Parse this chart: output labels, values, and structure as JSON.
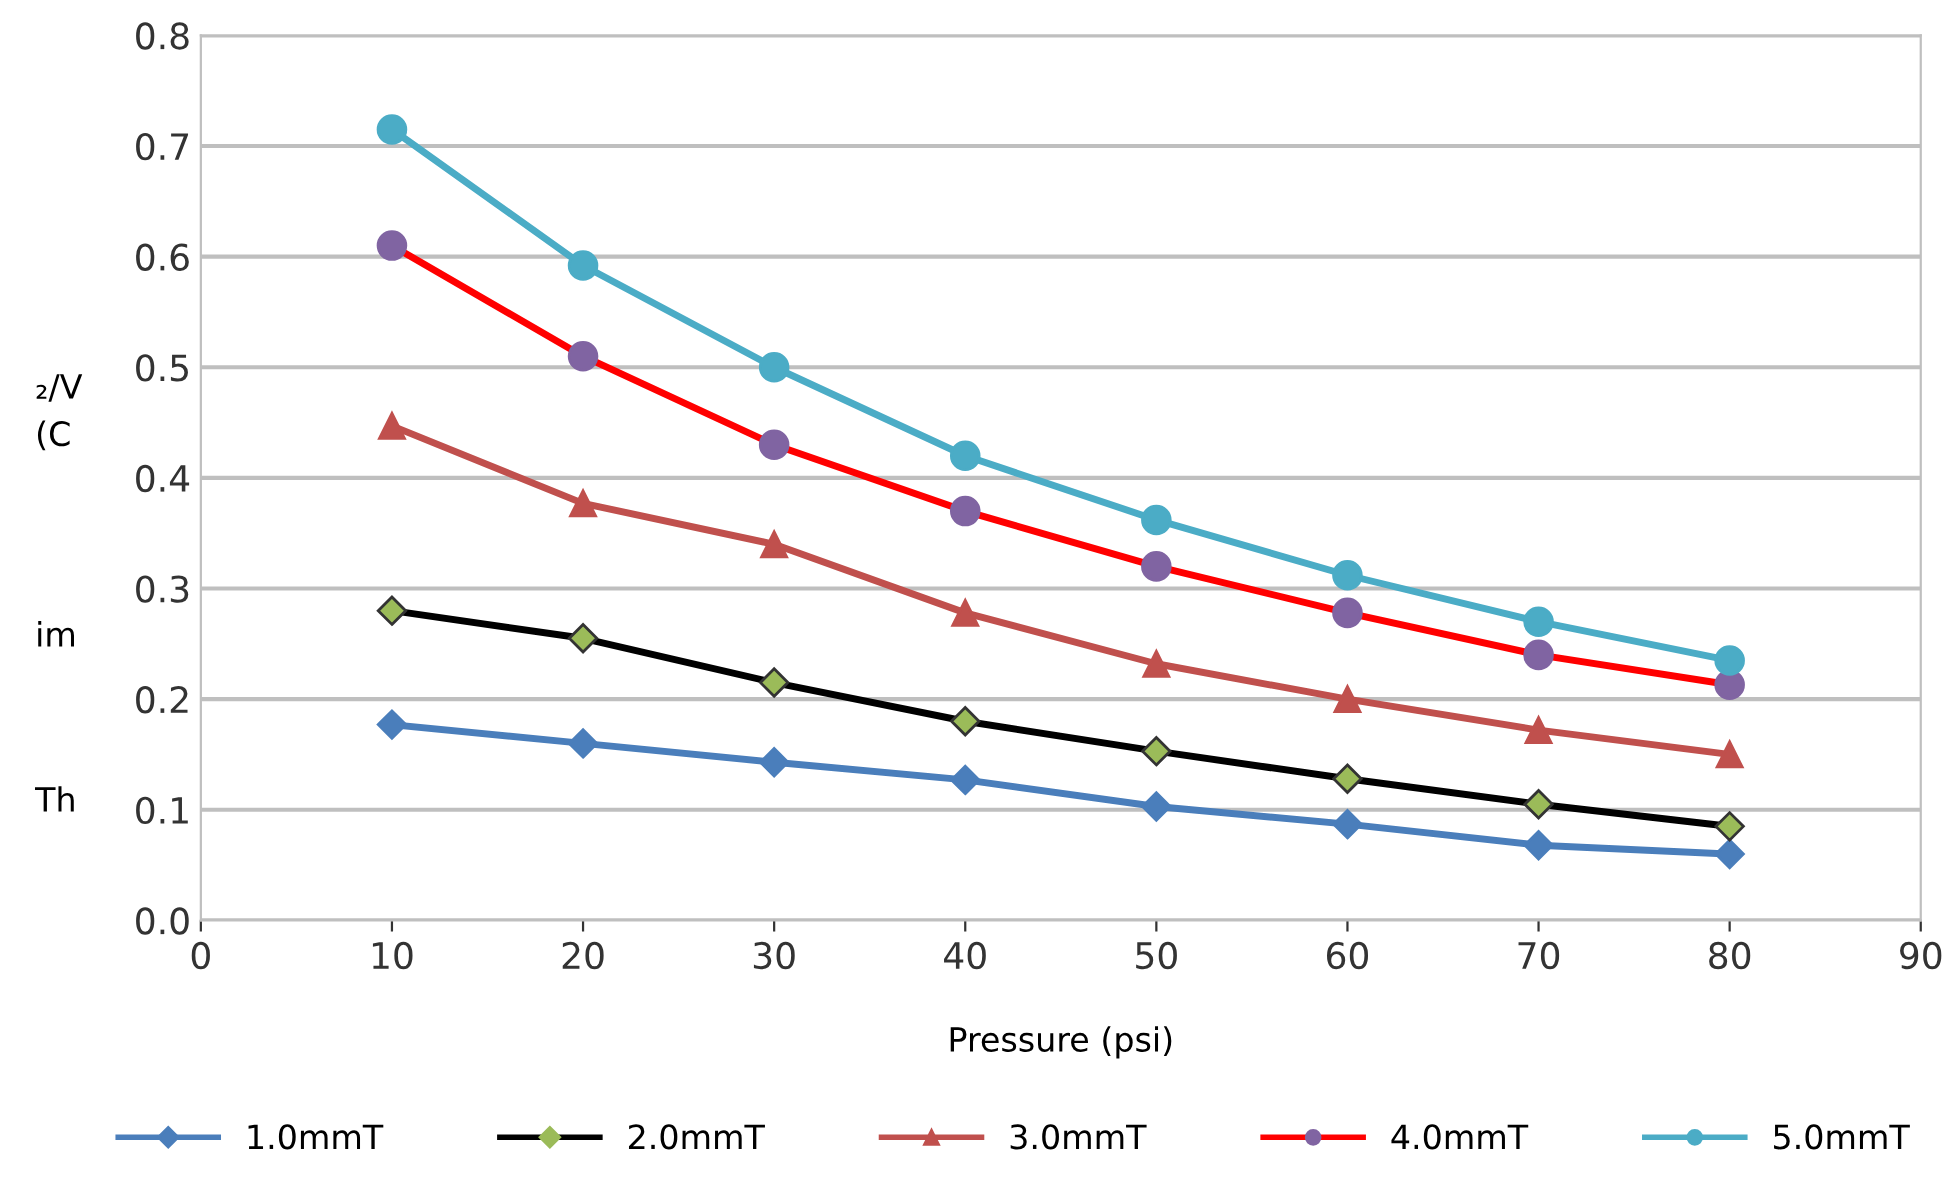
{
  "chart_data": {
    "type": "line",
    "xlabel": "Pressure (psi)",
    "annotations": [
      "₂/V",
      "(C",
      "im",
      "Th"
    ],
    "x": [
      10,
      20,
      30,
      40,
      50,
      60,
      70,
      80
    ],
    "xlim": [
      0,
      90
    ],
    "xticks": [
      0,
      10,
      20,
      30,
      40,
      50,
      60,
      70,
      80,
      90
    ],
    "ylim": [
      0,
      0.8
    ],
    "yticks": [
      {
        "value": 0,
        "label": "0.0"
      },
      0.1,
      0.2,
      0.3,
      0.4,
      0.5,
      0.6,
      0.7,
      0.8
    ],
    "grid": "y",
    "legend": "bottom",
    "series": [
      {
        "name": "1.0mmT",
        "color": "#4a7ebb",
        "colors": [
          "#4a7ebb",
          "#4a7ebb",
          "#4a7ebb",
          "#4a7ebb",
          "#4a7ebb",
          "#4a7ebb",
          "#4a7ebb",
          "#4a7ebb"
        ],
        "marker": "diamond",
        "values": [
          0.177,
          0.16,
          0.143,
          0.127,
          0.103,
          0.087,
          0.068,
          0.06
        ]
      },
      {
        "name": "2.0mmT",
        "color": "#000000",
        "colors": [
          "#9bbb59",
          "#9bbb59",
          "#9bbb59",
          "#9bbb59",
          "#9bbb59",
          "#9bbb59",
          "#9bbb59",
          "#9bbb59"
        ],
        "marker": "diamond",
        "values": [
          0.28,
          0.255,
          0.215,
          0.18,
          0.153,
          0.128,
          0.105,
          0.085
        ]
      },
      {
        "name": "3.0mmT",
        "color": "#c0504d",
        "colors": [
          "#c0504d",
          "#c0504d",
          "#c0504d",
          "#c0504d",
          "#c0504d",
          "#c0504d",
          "#c0504d",
          "#c0504d"
        ],
        "marker": "triangle",
        "values": [
          0.447,
          0.377,
          0.34,
          0.278,
          0.232,
          0.2,
          0.172,
          0.15
        ]
      },
      {
        "name": "4.0mmT",
        "color": "#ff0000",
        "colors": [
          "#8064a2",
          "#8064a2",
          "#8064a2",
          "#8064a2",
          "#8064a2",
          "#8064a2",
          "#8064a2",
          "#8064a2"
        ],
        "marker": "circle",
        "values": [
          0.61,
          0.51,
          0.43,
          0.37,
          0.32,
          0.278,
          0.24,
          0.213
        ]
      },
      {
        "name": "5.0mmT",
        "color": "#4bacc6",
        "colors": [
          "#4bacc6",
          "#4bacc6",
          "#4bacc6",
          "#4bacc6",
          "#4bacc6",
          "#4bacc6",
          "#4bacc6",
          "#4bacc6"
        ],
        "marker": "circle",
        "values": [
          0.715,
          0.592,
          0.5,
          0.42,
          0.362,
          0.312,
          0.27,
          0.235
        ]
      }
    ]
  }
}
